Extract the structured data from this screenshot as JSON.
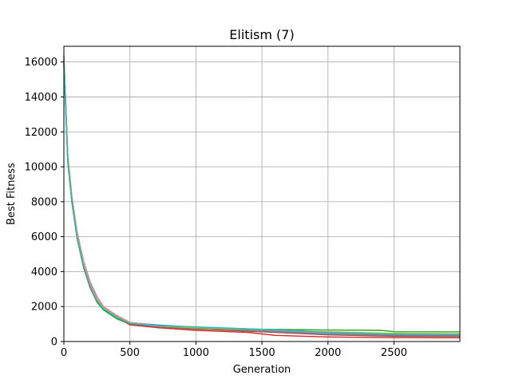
{
  "chart_data": {
    "type": "line",
    "title": "Elitism (7)",
    "xlabel": "Generation",
    "ylabel": "Best Fitness",
    "xlim": [
      0,
      2999
    ],
    "ylim": [
      0,
      16900
    ],
    "xticks": [
      0,
      500,
      1000,
      1500,
      2000,
      2500
    ],
    "yticks": [
      0,
      2000,
      4000,
      6000,
      8000,
      10000,
      12000,
      14000,
      16000
    ],
    "grid": true,
    "legend": "none",
    "colors": [
      "#1f77b4",
      "#ff7f0e",
      "#2ca02c",
      "#d62728",
      "#9467bd",
      "#8c564b",
      "#e377c2",
      "#7f7f7f",
      "#bcbd22",
      "#17becf"
    ],
    "series": [
      {
        "x": [
          0,
          30,
          60,
          100,
          150,
          200,
          250,
          300,
          400,
          500,
          700,
          1000,
          1500,
          2000,
          2500,
          2999
        ],
        "values": [
          16400,
          10500,
          8200,
          6100,
          4400,
          3200,
          2350,
          1850,
          1400,
          1080,
          950,
          820,
          660,
          500,
          430,
          420
        ]
      },
      {
        "x": [
          0,
          30,
          60,
          100,
          150,
          200,
          250,
          300,
          400,
          500,
          700,
          1000,
          1500,
          2000,
          2500,
          2999
        ],
        "values": [
          16000,
          10300,
          8100,
          6000,
          4300,
          3150,
          2400,
          1950,
          1450,
          1050,
          880,
          760,
          640,
          470,
          400,
          380
        ]
      },
      {
        "x": [
          0,
          30,
          60,
          100,
          150,
          200,
          250,
          300,
          400,
          500,
          700,
          1000,
          1500,
          2000,
          2400,
          2500,
          2999
        ],
        "values": [
          16200,
          10600,
          8300,
          6200,
          4400,
          3100,
          2250,
          1800,
          1300,
          1000,
          900,
          820,
          700,
          660,
          640,
          560,
          550
        ]
      },
      {
        "x": [
          0,
          30,
          60,
          100,
          150,
          200,
          250,
          300,
          400,
          500,
          700,
          1000,
          1400,
          1600,
          2000,
          2500,
          2999
        ],
        "values": [
          15800,
          10200,
          8000,
          5900,
          4200,
          3050,
          2300,
          1900,
          1400,
          950,
          800,
          640,
          520,
          350,
          260,
          220,
          210
        ]
      },
      {
        "x": [
          0,
          30,
          60,
          100,
          150,
          200,
          250,
          300,
          400,
          500,
          700,
          1000,
          1500,
          2000,
          2500,
          2999
        ],
        "values": [
          16100,
          10400,
          8150,
          6050,
          4350,
          3250,
          2450,
          1900,
          1420,
          1060,
          900,
          780,
          620,
          440,
          360,
          340
        ]
      },
      {
        "x": [
          0,
          30,
          60,
          100,
          150,
          200,
          250,
          300,
          400,
          500,
          700,
          1000,
          1500,
          2000,
          2500,
          2999
        ],
        "values": [
          15900,
          10350,
          8050,
          5950,
          4250,
          3100,
          2350,
          1870,
          1380,
          1020,
          860,
          720,
          560,
          380,
          300,
          290
        ]
      },
      {
        "x": [
          0,
          30,
          60,
          100,
          150,
          200,
          250,
          300,
          400,
          500,
          700,
          1000,
          1500,
          2000,
          2500,
          2999
        ],
        "values": [
          16300,
          10700,
          8400,
          6300,
          4600,
          3400,
          2600,
          2000,
          1500,
          1100,
          920,
          800,
          650,
          480,
          390,
          370
        ]
      },
      {
        "x": [
          0,
          30,
          60,
          100,
          150,
          200,
          250,
          300,
          400,
          500,
          700,
          1000,
          1500,
          2000,
          2500,
          2999
        ],
        "values": [
          16050,
          10450,
          8200,
          6000,
          4300,
          3180,
          2380,
          1880,
          1410,
          1040,
          870,
          750,
          600,
          420,
          350,
          330
        ]
      },
      {
        "x": [
          0,
          30,
          60,
          100,
          150,
          200,
          250,
          300,
          400,
          500,
          700,
          1000,
          1500,
          2000,
          2500,
          2999
        ],
        "values": [
          16150,
          10550,
          8250,
          6150,
          4450,
          3220,
          2420,
          1920,
          1430,
          1070,
          890,
          790,
          680,
          560,
          470,
          450
        ]
      },
      {
        "x": [
          0,
          30,
          60,
          100,
          150,
          200,
          250,
          300,
          400,
          500,
          700,
          1000,
          1500,
          2000,
          2500,
          2999
        ],
        "values": [
          15950,
          10250,
          8100,
          5980,
          4280,
          3120,
          2330,
          1860,
          1390,
          1030,
          910,
          840,
          700,
          520,
          420,
          410
        ]
      }
    ]
  }
}
